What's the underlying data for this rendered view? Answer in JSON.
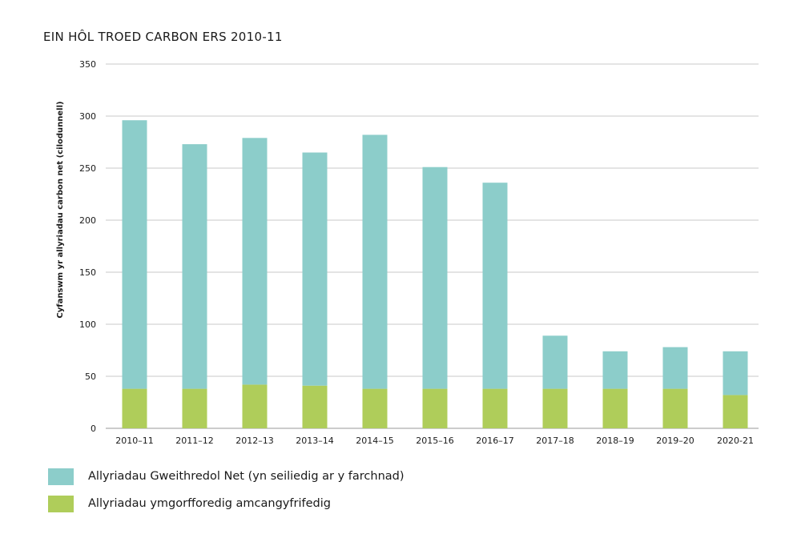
{
  "chart_data": {
    "type": "bar",
    "stacked": true,
    "title": "EIN HÔL TROED CARBON ERS 2010-11",
    "xlabel": "",
    "ylabel": "Cyfanswm yr allyriadau carbon net (cilodunnell)",
    "ylim": [
      0,
      350
    ],
    "yticks": [
      0,
      50,
      100,
      150,
      200,
      250,
      300,
      350
    ],
    "grid": true,
    "legend_position": "bottom-left",
    "categories": [
      "2010–11",
      "2011–12",
      "2012–13",
      "2013–14",
      "2014–15",
      "2015–16",
      "2016–17",
      "2017–18",
      "2018–19",
      "2019–20",
      "2020-21"
    ],
    "series": [
      {
        "name": "Allyriadau ymgorfforedig amcangyfrifedig",
        "color": "#afcd5a",
        "values": [
          38,
          38,
          42,
          41,
          38,
          38,
          38,
          38,
          38,
          38,
          32
        ]
      },
      {
        "name": "Allyriadau Gweithredol Net (yn seiliedig ar y farchnad)",
        "color": "#8ccdca",
        "values": [
          258,
          235,
          237,
          224,
          244,
          213,
          198,
          51,
          36,
          40,
          42
        ]
      }
    ],
    "totals": [
      296,
      273,
      279,
      265,
      282,
      251,
      236,
      89,
      74,
      78,
      74
    ]
  },
  "legend": {
    "items": [
      {
        "label": "Allyriadau Gweithredol Net (yn seiliedig ar y farchnad)",
        "color": "#8ccdca"
      },
      {
        "label": "Allyriadau ymgorfforedig amcangyfrifedig",
        "color": "#afcd5a"
      }
    ]
  }
}
